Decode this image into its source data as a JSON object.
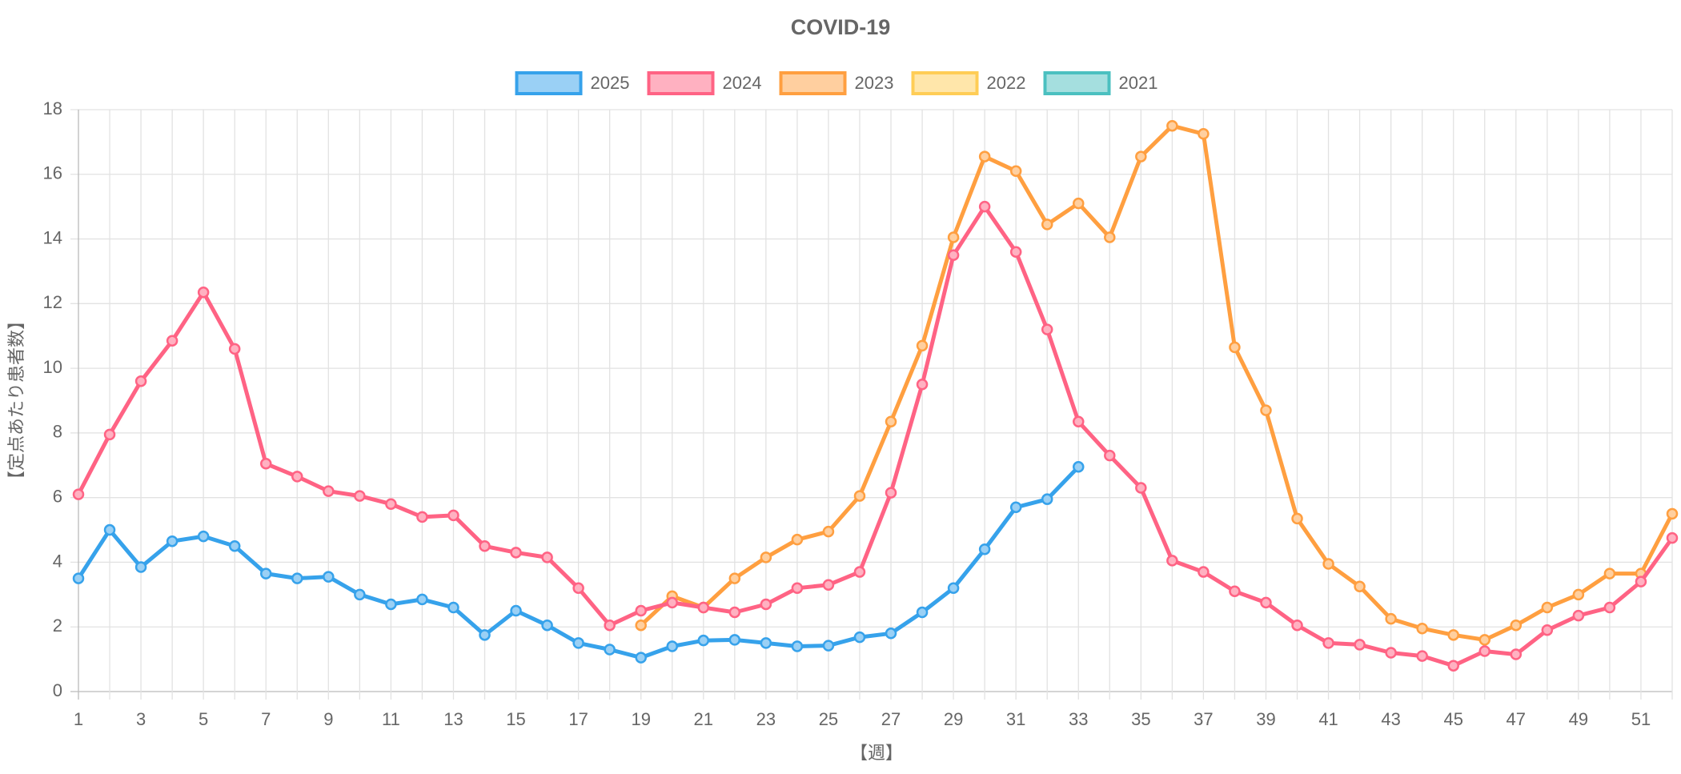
{
  "chart_data": {
    "type": "line",
    "title": "COVID-19",
    "xlabel": "【週】",
    "ylabel": "【定点あたり患者数】",
    "categories": [
      "1",
      null,
      "3",
      null,
      "5",
      null,
      "7",
      null,
      "9",
      null,
      "11",
      null,
      "13",
      null,
      "15",
      null,
      "17",
      null,
      "19",
      null,
      "21",
      null,
      "23",
      null,
      "25",
      null,
      "27",
      null,
      "29",
      null,
      "31",
      null,
      "33",
      null,
      "35",
      null,
      "37",
      null,
      "39",
      null,
      "41",
      null,
      "43",
      null,
      "45",
      null,
      "47",
      null,
      "49",
      null,
      "51",
      null
    ],
    "ylim": [
      0,
      18
    ],
    "yticks": [
      0,
      2,
      4,
      6,
      8,
      10,
      12,
      14,
      16,
      18
    ],
    "grid": true,
    "legend": "top",
    "series": [
      {
        "name": "2025",
        "color": "#36a2eb",
        "values": [
          3.5,
          5.0,
          3.85,
          4.65,
          4.8,
          4.5,
          3.65,
          3.5,
          3.55,
          3.0,
          2.7,
          2.85,
          2.6,
          1.75,
          2.5,
          2.05,
          1.5,
          1.3,
          1.05,
          1.4,
          1.58,
          1.6,
          1.5,
          1.4,
          1.42,
          1.68,
          1.8,
          2.45,
          3.2,
          4.4,
          5.7,
          5.95,
          6.95,
          null,
          null,
          null,
          null,
          null,
          null,
          null,
          null,
          null,
          null,
          null,
          null,
          null,
          null,
          null,
          null,
          null,
          null,
          null
        ]
      },
      {
        "name": "2024",
        "color": "#ff6384",
        "values": [
          6.1,
          7.95,
          9.6,
          10.85,
          12.35,
          10.6,
          7.05,
          6.65,
          6.2,
          6.05,
          5.8,
          5.4,
          5.45,
          4.5,
          4.3,
          4.15,
          3.2,
          2.05,
          2.5,
          2.75,
          2.6,
          2.45,
          2.7,
          3.2,
          3.3,
          3.7,
          6.15,
          9.5,
          13.5,
          15.0,
          13.6,
          11.2,
          8.35,
          7.3,
          6.3,
          4.05,
          3.7,
          3.1,
          2.75,
          2.05,
          1.5,
          1.45,
          1.2,
          1.1,
          0.8,
          1.25,
          1.15,
          1.9,
          2.35,
          2.6,
          3.4,
          4.75
        ]
      },
      {
        "name": "2023",
        "color": "#ff9f40",
        "values": [
          null,
          null,
          null,
          null,
          null,
          null,
          null,
          null,
          null,
          null,
          null,
          null,
          null,
          null,
          null,
          null,
          null,
          null,
          2.05,
          2.95,
          2.6,
          3.5,
          4.15,
          4.7,
          4.95,
          6.05,
          8.35,
          10.7,
          14.05,
          16.55,
          16.1,
          14.45,
          15.1,
          14.05,
          16.55,
          17.5,
          17.25,
          10.65,
          8.7,
          5.35,
          3.95,
          3.25,
          2.25,
          1.95,
          1.75,
          1.6,
          2.05,
          2.6,
          3.0,
          3.65,
          3.65,
          5.5
        ]
      },
      {
        "name": "2022",
        "color": "#ffcd56",
        "values": [
          null,
          null,
          null,
          null,
          null,
          null,
          null,
          null,
          null,
          null,
          null,
          null,
          null,
          null,
          null,
          null,
          null,
          null,
          null,
          null,
          null,
          null,
          null,
          null,
          null,
          null,
          null,
          null,
          null,
          null,
          null,
          null,
          null,
          null,
          null,
          null,
          null,
          null,
          null,
          null,
          null,
          null,
          null,
          null,
          null,
          null,
          null,
          null,
          null,
          null,
          null,
          null
        ]
      },
      {
        "name": "2021",
        "color": "#4bc0c0",
        "values": [
          null,
          null,
          null,
          null,
          null,
          null,
          null,
          null,
          null,
          null,
          null,
          null,
          null,
          null,
          null,
          null,
          null,
          null,
          null,
          null,
          null,
          null,
          null,
          null,
          null,
          null,
          null,
          null,
          null,
          null,
          null,
          null,
          null,
          null,
          null,
          null,
          null,
          null,
          null,
          null,
          null,
          null,
          null,
          null,
          null,
          null,
          null,
          null,
          null,
          null,
          null,
          null
        ]
      }
    ]
  }
}
